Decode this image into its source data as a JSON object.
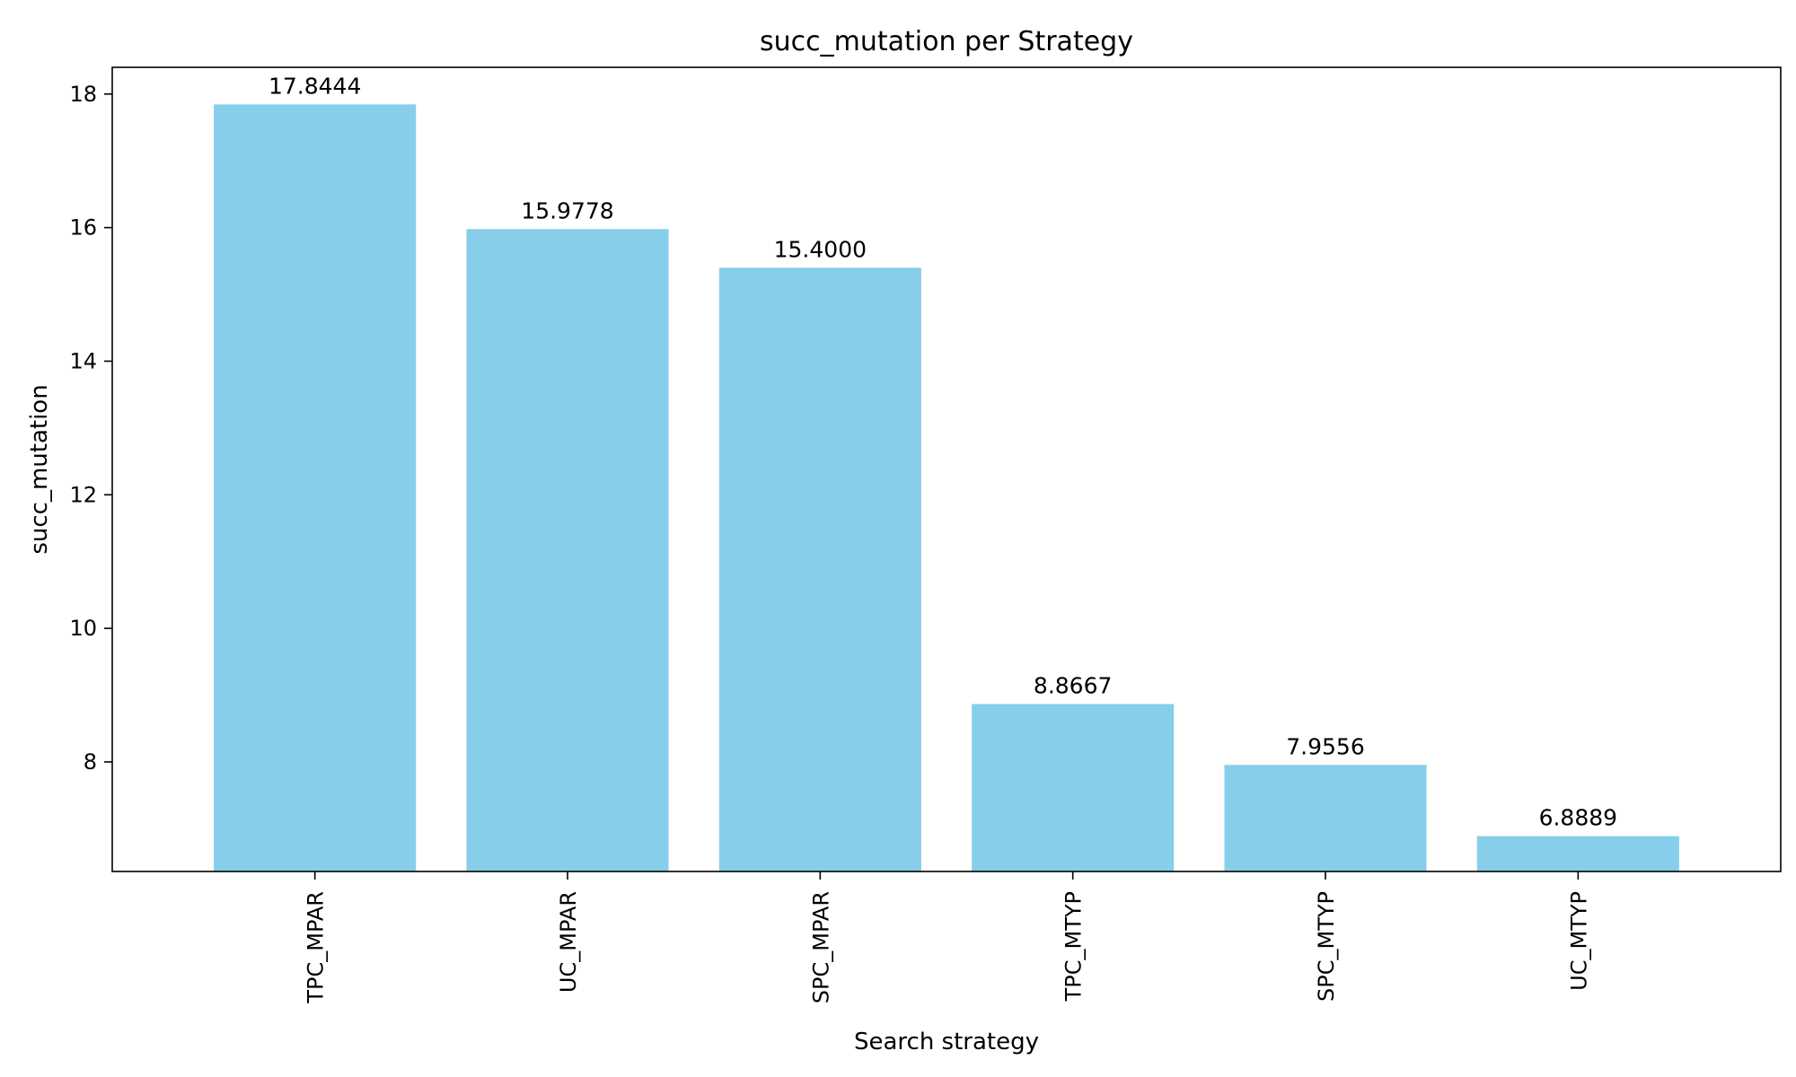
{
  "chart_data": {
    "type": "bar",
    "title": "succ_mutation per Strategy",
    "xlabel": "Search strategy",
    "ylabel": "succ_mutation",
    "categories": [
      "TPC_MPAR",
      "UC_MPAR",
      "SPC_MPAR",
      "TPC_MTYP",
      "SPC_MTYP",
      "UC_MTYP"
    ],
    "values": [
      17.8444,
      15.9778,
      15.4,
      8.8667,
      7.9556,
      6.8889
    ],
    "value_labels": [
      "17.8444",
      "15.9778",
      "15.4000",
      "8.8667",
      "7.9556",
      "6.8889"
    ],
    "ylim": [
      6.36,
      18.4
    ],
    "yticks": [
      8,
      10,
      12,
      14,
      16,
      18
    ],
    "ytick_labels": [
      "8",
      "10",
      "12",
      "14",
      "16",
      "18"
    ],
    "grid": false,
    "bar_color": "#87ceeb"
  }
}
